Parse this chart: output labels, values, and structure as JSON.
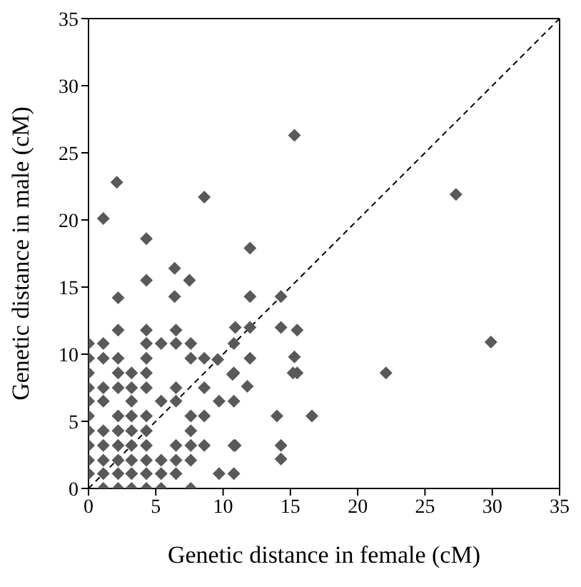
{
  "chart_data": {
    "type": "scatter",
    "xlabel": "Genetic distance in female (cM)",
    "ylabel": "Genetic distance in male (cM)",
    "xlim": [
      0,
      35
    ],
    "ylim": [
      0,
      35
    ],
    "xticks": [
      0,
      5,
      10,
      15,
      20,
      25,
      30,
      35
    ],
    "yticks": [
      0,
      5,
      10,
      15,
      20,
      25,
      30,
      35
    ],
    "grid": false,
    "legend": false,
    "marker": "diamond",
    "series": [
      {
        "color": "#595959",
        "x": [
          1.1,
          2.2,
          3.2,
          4.3,
          5.4,
          7.6,
          0,
          1.1,
          2.2,
          3.2,
          4.3,
          5.4,
          6.5,
          9.7,
          10.8,
          0,
          1.1,
          2.2,
          3.2,
          4.3,
          5.4,
          6.5,
          7.6,
          0,
          1.1,
          2.2,
          3.2,
          4.3,
          6.5,
          7.6,
          8.6,
          10.8,
          0,
          1.1,
          2.2,
          3.2,
          4.3,
          7.6,
          0,
          2.2,
          3.2,
          4.3,
          7.6,
          8.6,
          0,
          1.1,
          3.2,
          5.4,
          6.5,
          9.7,
          10.8,
          0,
          1.1,
          2.2,
          3.2,
          4.3,
          6.5,
          8.6,
          0,
          2.2,
          3.2,
          4.3,
          10.8,
          0,
          1.1,
          2.2,
          4.3,
          7.6,
          8.6,
          9.6,
          0,
          1.1,
          4.3,
          5.4,
          6.5,
          7.6,
          10.8,
          2.2,
          4.3,
          6.5,
          2.2,
          6.4,
          2.1,
          1.1,
          8.6,
          4.3,
          6.4,
          4.3,
          7.5,
          12.0,
          12.0,
          14.3,
          10.9,
          12.0,
          14.3,
          15.5,
          12.0,
          15.3,
          10.7,
          15.2,
          15.5,
          22.1,
          11.8,
          14.0,
          16.6,
          10.9,
          14.3,
          14.3,
          15.3,
          27.3,
          29.9
        ],
        "values": [
          0,
          0,
          0,
          0,
          0,
          0,
          1.1,
          1.1,
          1.1,
          1.1,
          1.1,
          1.1,
          1.1,
          1.1,
          1.1,
          2.1,
          2.1,
          2.1,
          2.1,
          2.1,
          2.1,
          2.1,
          2.1,
          3.2,
          3.2,
          3.2,
          3.2,
          3.2,
          3.2,
          3.2,
          3.2,
          3.2,
          4.3,
          4.3,
          4.3,
          4.3,
          4.3,
          4.3,
          5.4,
          5.4,
          5.4,
          5.4,
          5.4,
          5.4,
          6.5,
          6.5,
          6.5,
          6.5,
          6.5,
          6.5,
          6.5,
          7.5,
          7.5,
          7.5,
          7.5,
          7.5,
          7.5,
          7.5,
          8.6,
          8.6,
          8.6,
          8.6,
          8.6,
          9.7,
          9.7,
          9.7,
          9.7,
          9.7,
          9.7,
          9.6,
          10.8,
          10.8,
          10.8,
          10.8,
          10.8,
          10.8,
          10.8,
          11.8,
          11.8,
          11.8,
          14.2,
          14.3,
          22.8,
          20.1,
          21.7,
          18.6,
          16.4,
          15.5,
          15.5,
          17.9,
          14.3,
          14.3,
          12.0,
          12.0,
          12.0,
          11.8,
          9.7,
          9.8,
          8.5,
          8.6,
          8.6,
          8.6,
          7.6,
          5.4,
          5.4,
          3.2,
          3.2,
          2.2,
          26.3,
          21.9,
          10.9
        ]
      },
      {
        "type": "line",
        "color": "#000000",
        "line_style": "dashed",
        "marker": "none",
        "x": [
          0,
          35
        ],
        "values": [
          0,
          35
        ]
      }
    ]
  }
}
